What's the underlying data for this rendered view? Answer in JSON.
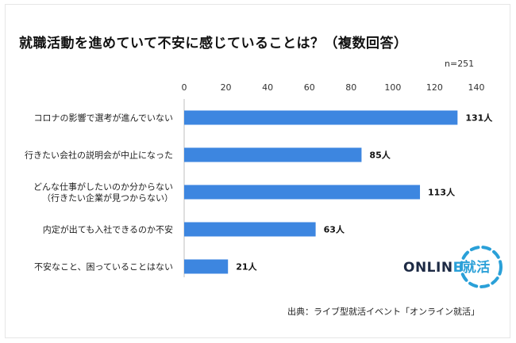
{
  "title": "就職活動を進めていて不安に感じていることは？（複数回答）",
  "sample": "n=251",
  "source": "出典：ライブ型就活イベント「オンライン就活」",
  "logo": {
    "main": "ONLIN",
    "accent": "E就活",
    "full": "ONLINE就活"
  },
  "colors": {
    "bar": "#3d86e0",
    "axis": "#bfbfbf",
    "logo_ring": "#2aa0d8",
    "logo_text": "#1d2a44"
  },
  "chart_data": {
    "type": "bar",
    "orientation": "horizontal",
    "categories": [
      [
        "コロナの影響で選考が進んでいない"
      ],
      [
        "行きたい会社の説明会が中止になった"
      ],
      [
        "どんな仕事がしたいのか分からない",
        "（行きたい企業が見つからない）"
      ],
      [
        "内定が出ても入社できるのか不安"
      ],
      [
        "不安なこと、困っていることはない"
      ]
    ],
    "values": [
      131,
      85,
      113,
      63,
      21
    ],
    "value_labels": [
      "131人",
      "85人",
      "113人",
      "63人",
      "21人"
    ],
    "x_ticks": [
      "0",
      "20",
      "40",
      "60",
      "80",
      "100",
      "120",
      "140"
    ],
    "xlim": [
      0,
      140
    ],
    "axis_position": "top",
    "grid": false,
    "legend": "none"
  }
}
